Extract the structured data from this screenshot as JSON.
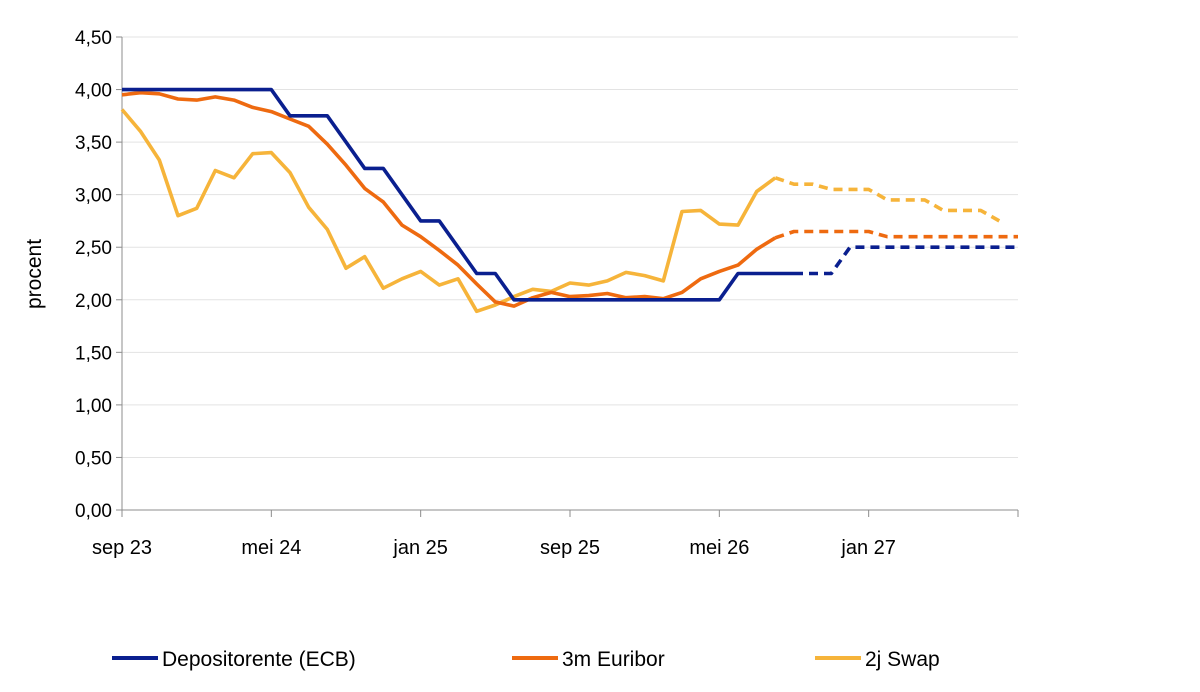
{
  "chart_data": {
    "type": "line",
    "ylabel": "procent",
    "ylim": [
      0,
      4.5
    ],
    "y_ticks": [
      "0,00",
      "0,50",
      "1,00",
      "1,50",
      "2,00",
      "2,50",
      "3,00",
      "3,50",
      "4,00",
      "4,50"
    ],
    "x_range": [
      "2023-09",
      "2027-09"
    ],
    "x_ticks": [
      {
        "label": "sep 23",
        "date": "2023-09"
      },
      {
        "label": "mei 24",
        "date": "2024-05"
      },
      {
        "label": "jan 25",
        "date": "2025-01"
      },
      {
        "label": "sep 25",
        "date": "2025-09"
      },
      {
        "label": "mei 26",
        "date": "2026-05"
      },
      {
        "label": "jan 27",
        "date": "2027-01"
      }
    ],
    "grid": "horizontal",
    "legend_position": "bottom",
    "series": [
      {
        "name": "Depositorente (ECB)",
        "color": "#0a1f8f",
        "style": "solid",
        "points": [
          [
            "2023-09",
            4.0
          ],
          [
            "2023-10",
            4.0
          ],
          [
            "2023-11",
            4.0
          ],
          [
            "2023-12",
            4.0
          ],
          [
            "2024-01",
            4.0
          ],
          [
            "2024-02",
            4.0
          ],
          [
            "2024-03",
            4.0
          ],
          [
            "2024-04",
            4.0
          ],
          [
            "2024-05",
            4.0
          ],
          [
            "2024-06",
            3.75
          ],
          [
            "2024-07",
            3.75
          ],
          [
            "2024-08",
            3.75
          ],
          [
            "2024-09",
            3.5
          ],
          [
            "2024-10",
            3.25
          ],
          [
            "2024-11",
            3.25
          ],
          [
            "2024-12",
            3.0
          ],
          [
            "2025-01",
            2.75
          ],
          [
            "2025-02",
            2.75
          ],
          [
            "2025-03",
            2.5
          ],
          [
            "2025-04",
            2.25
          ],
          [
            "2025-05",
            2.25
          ],
          [
            "2025-06",
            2.0
          ],
          [
            "2025-07",
            2.0
          ],
          [
            "2025-08",
            2.0
          ],
          [
            "2025-09",
            2.0
          ],
          [
            "2025-10",
            2.0
          ],
          [
            "2025-11",
            2.0
          ],
          [
            "2025-12",
            2.0
          ],
          [
            "2026-01",
            2.0
          ],
          [
            "2026-02",
            2.0
          ],
          [
            "2026-03",
            2.0
          ],
          [
            "2026-04",
            2.0
          ],
          [
            "2026-05",
            2.0
          ],
          [
            "2026-06",
            2.25
          ],
          [
            "2026-07",
            2.25
          ],
          [
            "2026-08",
            2.25
          ],
          [
            "2026-09",
            2.25
          ]
        ]
      },
      {
        "name": "Depositorente (ECB)",
        "color": "#0a1f8f",
        "style": "dashed",
        "points": [
          [
            "2026-09",
            2.25
          ],
          [
            "2026-10",
            2.25
          ],
          [
            "2026-11",
            2.25
          ],
          [
            "2026-12",
            2.5
          ],
          [
            "2027-01",
            2.5
          ],
          [
            "2027-02",
            2.5
          ],
          [
            "2027-03",
            2.5
          ],
          [
            "2027-04",
            2.5
          ],
          [
            "2027-05",
            2.5
          ],
          [
            "2027-06",
            2.5
          ],
          [
            "2027-07",
            2.5
          ],
          [
            "2027-08",
            2.5
          ],
          [
            "2027-09",
            2.5
          ]
        ]
      },
      {
        "name": "3m Euribor",
        "color": "#ee6a10",
        "style": "solid",
        "points": [
          [
            "2023-09",
            3.95
          ],
          [
            "2023-10",
            3.97
          ],
          [
            "2023-11",
            3.96
          ],
          [
            "2023-12",
            3.91
          ],
          [
            "2024-01",
            3.9
          ],
          [
            "2024-02",
            3.93
          ],
          [
            "2024-03",
            3.9
          ],
          [
            "2024-04",
            3.83
          ],
          [
            "2024-05",
            3.79
          ],
          [
            "2024-06",
            3.72
          ],
          [
            "2024-07",
            3.65
          ],
          [
            "2024-08",
            3.48
          ],
          [
            "2024-09",
            3.28
          ],
          [
            "2024-10",
            3.06
          ],
          [
            "2024-11",
            2.93
          ],
          [
            "2024-12",
            2.71
          ],
          [
            "2025-01",
            2.6
          ],
          [
            "2025-02",
            2.47
          ],
          [
            "2025-03",
            2.33
          ],
          [
            "2025-04",
            2.15
          ],
          [
            "2025-05",
            1.98
          ],
          [
            "2025-06",
            1.94
          ],
          [
            "2025-07",
            2.02
          ],
          [
            "2025-08",
            2.07
          ],
          [
            "2025-09",
            2.03
          ],
          [
            "2025-10",
            2.04
          ],
          [
            "2025-11",
            2.06
          ],
          [
            "2025-12",
            2.02
          ],
          [
            "2026-01",
            2.03
          ],
          [
            "2026-02",
            2.01
          ],
          [
            "2026-03",
            2.07
          ],
          [
            "2026-04",
            2.2
          ],
          [
            "2026-05",
            2.27
          ],
          [
            "2026-06",
            2.33
          ],
          [
            "2026-07",
            2.48
          ],
          [
            "2026-08",
            2.59
          ]
        ]
      },
      {
        "name": "3m Euribor",
        "color": "#ee6a10",
        "style": "dashed",
        "points": [
          [
            "2026-08",
            2.59
          ],
          [
            "2026-09",
            2.65
          ],
          [
            "2026-10",
            2.65
          ],
          [
            "2026-11",
            2.65
          ],
          [
            "2026-12",
            2.65
          ],
          [
            "2027-01",
            2.65
          ],
          [
            "2027-02",
            2.6
          ],
          [
            "2027-03",
            2.6
          ],
          [
            "2027-04",
            2.6
          ],
          [
            "2027-05",
            2.6
          ],
          [
            "2027-06",
            2.6
          ],
          [
            "2027-07",
            2.6
          ],
          [
            "2027-08",
            2.6
          ],
          [
            "2027-09",
            2.6
          ]
        ]
      },
      {
        "name": "2j Swap",
        "color": "#f6b43a",
        "style": "solid",
        "points": [
          [
            "2023-09",
            3.81
          ],
          [
            "2023-10",
            3.6
          ],
          [
            "2023-11",
            3.33
          ],
          [
            "2023-12",
            2.8
          ],
          [
            "2024-01",
            2.87
          ],
          [
            "2024-02",
            3.23
          ],
          [
            "2024-03",
            3.16
          ],
          [
            "2024-04",
            3.39
          ],
          [
            "2024-05",
            3.4
          ],
          [
            "2024-06",
            3.21
          ],
          [
            "2024-07",
            2.88
          ],
          [
            "2024-08",
            2.67
          ],
          [
            "2024-09",
            2.3
          ],
          [
            "2024-10",
            2.41
          ],
          [
            "2024-11",
            2.11
          ],
          [
            "2024-12",
            2.2
          ],
          [
            "2025-01",
            2.27
          ],
          [
            "2025-02",
            2.14
          ],
          [
            "2025-03",
            2.2
          ],
          [
            "2025-04",
            1.89
          ],
          [
            "2025-05",
            1.95
          ],
          [
            "2025-06",
            2.03
          ],
          [
            "2025-07",
            2.1
          ],
          [
            "2025-08",
            2.08
          ],
          [
            "2025-09",
            2.16
          ],
          [
            "2025-10",
            2.14
          ],
          [
            "2025-11",
            2.18
          ],
          [
            "2025-12",
            2.26
          ],
          [
            "2026-01",
            2.23
          ],
          [
            "2026-02",
            2.18
          ],
          [
            "2026-03",
            2.84
          ],
          [
            "2026-04",
            2.85
          ],
          [
            "2026-05",
            2.72
          ],
          [
            "2026-06",
            2.71
          ],
          [
            "2026-07",
            3.03
          ],
          [
            "2026-08",
            3.16
          ]
        ]
      },
      {
        "name": "2j Swap",
        "color": "#f6b43a",
        "style": "dashed",
        "points": [
          [
            "2026-08",
            3.16
          ],
          [
            "2026-09",
            3.1
          ],
          [
            "2026-10",
            3.1
          ],
          [
            "2026-11",
            3.05
          ],
          [
            "2026-12",
            3.05
          ],
          [
            "2027-01",
            3.05
          ],
          [
            "2027-02",
            2.95
          ],
          [
            "2027-03",
            2.95
          ],
          [
            "2027-04",
            2.95
          ],
          [
            "2027-05",
            2.85
          ],
          [
            "2027-06",
            2.85
          ],
          [
            "2027-07",
            2.85
          ],
          [
            "2027-08",
            2.75
          ]
        ]
      }
    ],
    "legend": [
      {
        "label": "Depositorente (ECB)",
        "color": "#0a1f8f"
      },
      {
        "label": "3m Euribor",
        "color": "#ee6a10"
      },
      {
        "label": "2j Swap",
        "color": "#f6b43a"
      }
    ]
  }
}
